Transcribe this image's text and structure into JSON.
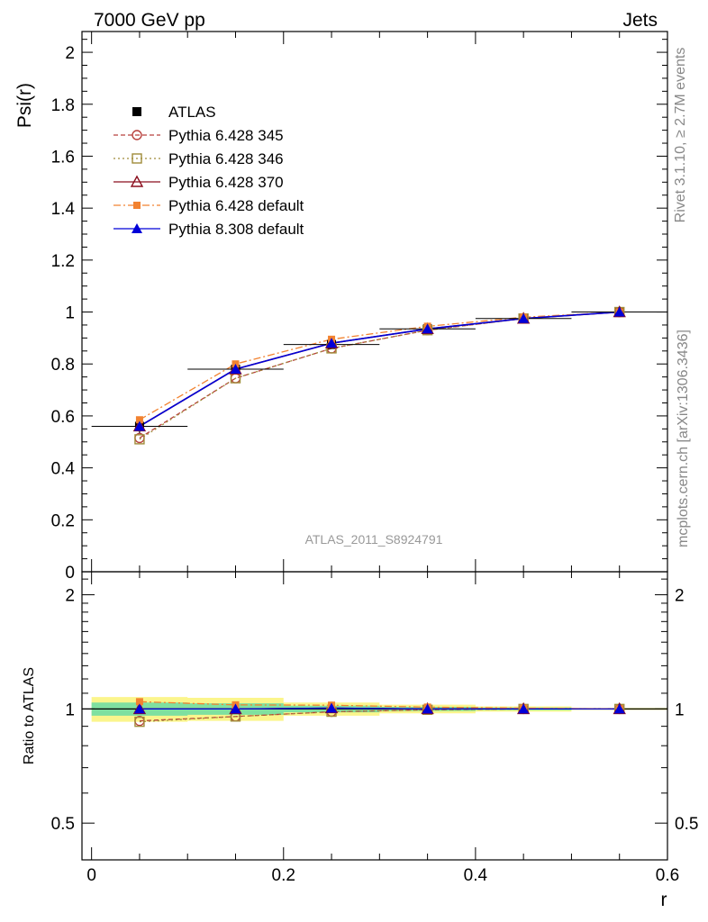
{
  "header": {
    "left": "7000 GeV pp",
    "right": "Jets"
  },
  "side_text": {
    "top": "Rivet 3.1.10, ≥ 2.7M events",
    "bottom": "mcplots.cern.ch [arXiv:1306.3436]"
  },
  "analysis_label": "ATLAS_2011_S8924791",
  "colors": {
    "atlas": "#000000",
    "py345": "#b8413d",
    "py346": "#a08c3a",
    "py370": "#8b0f1e",
    "pydef": "#f28230",
    "py8": "#0000d8",
    "band_inner": "#7fe0a0",
    "band_outer": "#fbf58c"
  },
  "chart_data": [
    {
      "type": "line",
      "ylabel": "Psi(r)",
      "ylim": [
        0,
        2.08
      ],
      "xlim": [
        -0.01,
        0.6
      ],
      "yticks": [
        "0",
        "0.2",
        "0.4",
        "0.6",
        "0.8",
        "1",
        "1.2",
        "1.4",
        "1.6",
        "1.8",
        "2"
      ],
      "x": [
        0.05,
        0.15,
        0.25,
        0.35,
        0.45,
        0.55
      ],
      "legend_position": "top-left",
      "series": [
        {
          "name": "ATLAS",
          "key": "atlas",
          "values": [
            0.56,
            0.78,
            0.875,
            0.935,
            0.975,
            1.0
          ],
          "errors": [
            0.03,
            0.02,
            0.015,
            0.01,
            0.005,
            0.002
          ]
        },
        {
          "name": "Pythia 6.428 345",
          "key": "py345",
          "values": [
            0.515,
            0.745,
            0.86,
            0.93,
            0.975,
            1.0
          ]
        },
        {
          "name": "Pythia 6.428 346",
          "key": "py346",
          "values": [
            0.51,
            0.745,
            0.86,
            0.93,
            0.975,
            1.0
          ]
        },
        {
          "name": "Pythia 6.428 370",
          "key": "py370",
          "values": [
            0.56,
            0.78,
            0.88,
            0.935,
            0.975,
            1.0
          ]
        },
        {
          "name": "Pythia 6.428 default",
          "key": "pydef",
          "values": [
            0.585,
            0.8,
            0.895,
            0.945,
            0.98,
            1.0
          ]
        },
        {
          "name": "Pythia 8.308 default",
          "key": "py8",
          "values": [
            0.56,
            0.78,
            0.88,
            0.935,
            0.975,
            1.0
          ]
        }
      ]
    },
    {
      "type": "line",
      "ylabel": "Ratio to ATLAS",
      "xlabel": "r",
      "ylim": [
        0.4,
        2.3
      ],
      "yticks": [
        "0.5",
        "1",
        "2"
      ],
      "xticks": [
        "0",
        "0.2",
        "0.4",
        "0.6"
      ],
      "x": [
        0.05,
        0.15,
        0.25,
        0.35,
        0.45,
        0.55
      ],
      "band": {
        "x": [
          0.0,
          0.1,
          0.2,
          0.3,
          0.4,
          0.5,
          0.6
        ],
        "inner": [
          0.04,
          0.035,
          0.02,
          0.013,
          0.008,
          0.003,
          0.002
        ],
        "outer": [
          0.075,
          0.07,
          0.04,
          0.026,
          0.016,
          0.006,
          0.004
        ]
      },
      "series": [
        {
          "name": "Pythia 6.428 345",
          "key": "py345",
          "values": [
            0.93,
            0.955,
            0.983,
            0.995,
            1.0,
            1.0
          ]
        },
        {
          "name": "Pythia 6.428 346",
          "key": "py346",
          "values": [
            0.925,
            0.955,
            0.983,
            0.995,
            1.0,
            1.0
          ]
        },
        {
          "name": "Pythia 6.428 370",
          "key": "py370",
          "values": [
            1.0,
            1.0,
            1.005,
            1.0,
            1.0,
            1.0
          ]
        },
        {
          "name": "Pythia 6.428 default",
          "key": "pydef",
          "values": [
            1.045,
            1.025,
            1.023,
            1.011,
            1.005,
            1.0
          ]
        },
        {
          "name": "Pythia 8.308 default",
          "key": "py8",
          "values": [
            1.0,
            1.0,
            1.005,
            1.0,
            1.0,
            1.0
          ]
        }
      ]
    }
  ]
}
